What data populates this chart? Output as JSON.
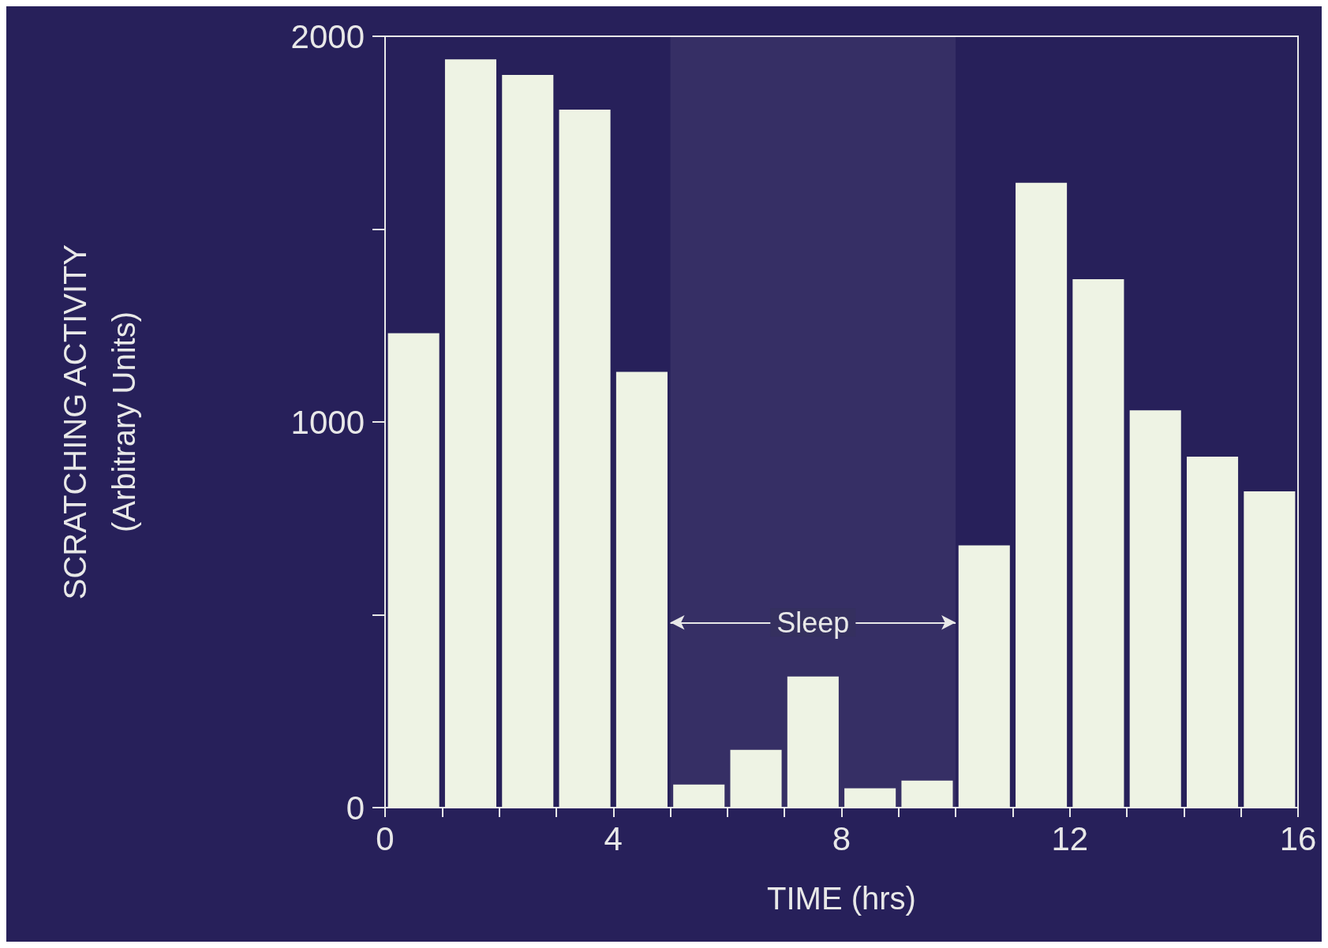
{
  "chart_data": {
    "type": "histogram",
    "xlabel": "TIME (hrs)",
    "ylabel": "SCRATCHING ACTIVITY\n(Arbitrary Units)",
    "bins": [
      0,
      1,
      2,
      3,
      4,
      5,
      6,
      7,
      8,
      9,
      10,
      11,
      12,
      13,
      14,
      15,
      16
    ],
    "values": [
      1230,
      1940,
      1900,
      1810,
      1130,
      60,
      150,
      340,
      50,
      70,
      680,
      1620,
      1370,
      1030,
      910,
      820
    ],
    "color": "#eef3e4",
    "xlim": [
      0,
      16
    ],
    "xticks": [
      0,
      {
        "value": 1,
        "label": null
      },
      {
        "value": 2,
        "label": null
      },
      {
        "value": 3,
        "label": null
      },
      4,
      {
        "value": 5,
        "label": null
      },
      {
        "value": 6,
        "label": null
      },
      {
        "value": 7,
        "label": null
      },
      8,
      {
        "value": 9,
        "label": null
      },
      {
        "value": 10,
        "label": null
      },
      {
        "value": 11,
        "label": null
      },
      12,
      {
        "value": 13,
        "label": null
      },
      {
        "value": 14,
        "label": null
      },
      {
        "value": 15,
        "label": null
      },
      16
    ],
    "ylim": [
      0,
      2000
    ],
    "yticks": [
      0,
      {
        "value": 500,
        "label": null
      },
      1000,
      {
        "value": 1500,
        "label": null
      },
      2000
    ],
    "bands": [
      {
        "axis": "x",
        "from": 5,
        "to": 10,
        "label": "Sleep"
      }
    ],
    "grid": false
  }
}
